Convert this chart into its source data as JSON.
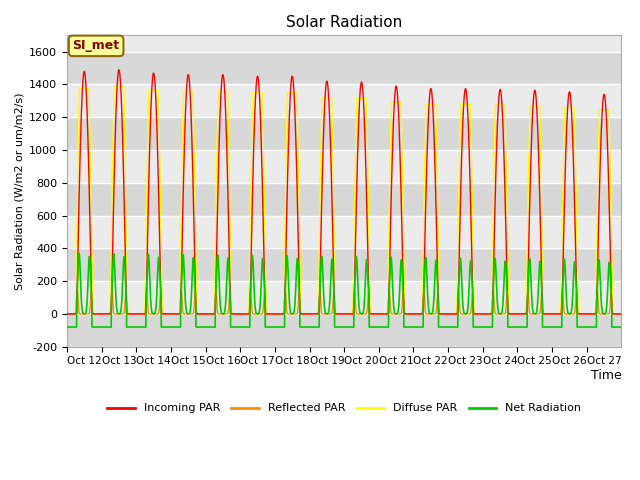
{
  "title": "Solar Radiation",
  "xlabel": "Time",
  "ylabel": "Solar Radiation (W/m2 or um/m2/s)",
  "ylim": [
    -200,
    1700
  ],
  "yticks": [
    -200,
    0,
    200,
    400,
    600,
    800,
    1000,
    1200,
    1400,
    1600
  ],
  "xtick_labels": [
    "Oct 12",
    "Oct 13",
    "Oct 14",
    "Oct 15",
    "Oct 16",
    "Oct 17",
    "Oct 18",
    "Oct 19",
    "Oct 20",
    "Oct 21",
    "Oct 22",
    "Oct 23",
    "Oct 24",
    "Oct 25",
    "Oct 26",
    "Oct 27"
  ],
  "num_days": 16,
  "colors": {
    "incoming": "#FF0000",
    "reflected": "#FF8C00",
    "diffuse": "#FFFF00",
    "net": "#00CC00",
    "plot_bg_dark": "#D8D8D8",
    "plot_bg_light": "#EBEBEB",
    "annotation_bg": "#FFFF99",
    "annotation_border": "#8B6914"
  },
  "legend_labels": [
    "Incoming PAR",
    "Reflected PAR",
    "Diffuse PAR",
    "Net Radiation"
  ],
  "annotation_text": "SI_met",
  "peak_incoming": [
    1480,
    1490,
    1470,
    1460,
    1460,
    1450,
    1450,
    1420,
    1415,
    1390,
    1375,
    1375,
    1370,
    1365,
    1355,
    1340
  ],
  "night_net": -80,
  "pts_per_day": 200
}
